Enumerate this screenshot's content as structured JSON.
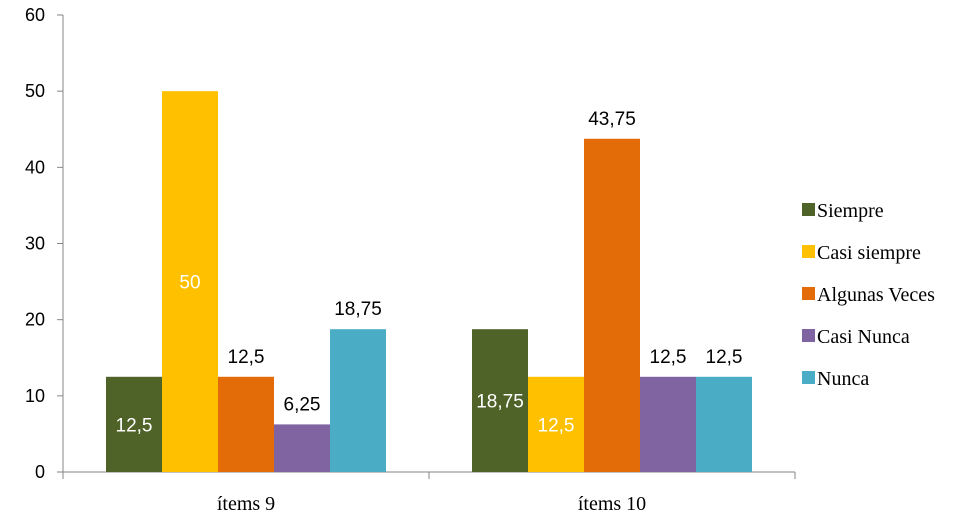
{
  "chart_data": {
    "type": "bar",
    "title": "",
    "xlabel": "",
    "ylabel": "",
    "ylim": [
      0,
      60
    ],
    "yticks": [
      "0",
      "10",
      "20",
      "30",
      "40",
      "50",
      "60"
    ],
    "grid": false,
    "legend_position": "right",
    "categories": [
      "ítems 9",
      "ítems 10"
    ],
    "series": [
      {
        "name": "Siempre",
        "color": "#4F6228",
        "values": [
          12.5,
          18.75
        ],
        "labels": [
          "12,5",
          "18,75"
        ],
        "label_inside": [
          true,
          true
        ]
      },
      {
        "name": "Casi siempre",
        "color": "#FFC000",
        "values": [
          50,
          12.5
        ],
        "labels": [
          "50",
          "12,5"
        ],
        "label_inside": [
          true,
          true
        ]
      },
      {
        "name": "Algunas Veces",
        "color": "#E36C09",
        "values": [
          12.5,
          43.75
        ],
        "labels": [
          "12,5",
          "43,75"
        ],
        "label_inside": [
          false,
          false
        ]
      },
      {
        "name": "Casi Nunca",
        "color": "#8064A2",
        "values": [
          6.25,
          12.5
        ],
        "labels": [
          "6,25",
          "12,5"
        ],
        "label_inside": [
          false,
          false
        ]
      },
      {
        "name": "Nunca",
        "color": "#4BACC6",
        "values": [
          18.75,
          12.5
        ],
        "labels": [
          "18,75",
          "12,5"
        ],
        "label_inside": [
          false,
          false
        ]
      }
    ]
  }
}
